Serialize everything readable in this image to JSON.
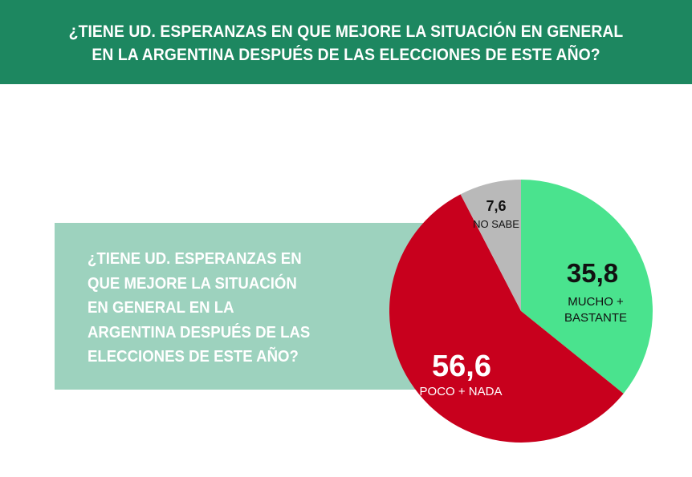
{
  "header": {
    "title": "¿TIENE UD. ESPERANZAS EN QUE MEJORE LA SITUACIÓN EN GENERAL EN LA ARGENTINA DESPUÉS DE LAS ELECCIONES DE ESTE AÑO?"
  },
  "question": {
    "text": "¿TIENE UD. ESPERANZAS EN QUE MEJORE LA SITUACIÓN EN GENERAL EN LA ARGENTINA DESPUÉS DE LAS ELECCIONES DE ESTE AÑO?"
  },
  "colors": {
    "header_bg": "#1d8760",
    "question_box": "#9dd2be",
    "mucho_bastante": "#4ae38e",
    "poco_nada": "#c8001d",
    "no_sabe": "#b9b9b9"
  },
  "chart_data": {
    "type": "pie",
    "title": "¿TIENE UD. ESPERANZAS EN QUE MEJORE LA SITUACIÓN EN GENERAL EN LA ARGENTINA DESPUÉS DE LAS ELECCIONES DE ESTE AÑO?",
    "start": "12 o'clock",
    "direction": "clockwise",
    "slices": [
      {
        "label": "MUCHO + BASTANTE",
        "value": 35.8,
        "value_text": "35,8",
        "color": "#4ae38e"
      },
      {
        "label": "POCO + NADA",
        "value": 56.6,
        "value_text": "56,6",
        "color": "#c8001d"
      },
      {
        "label": "NO SABE",
        "value": 7.6,
        "value_text": "7,6",
        "color": "#b9b9b9"
      }
    ]
  }
}
